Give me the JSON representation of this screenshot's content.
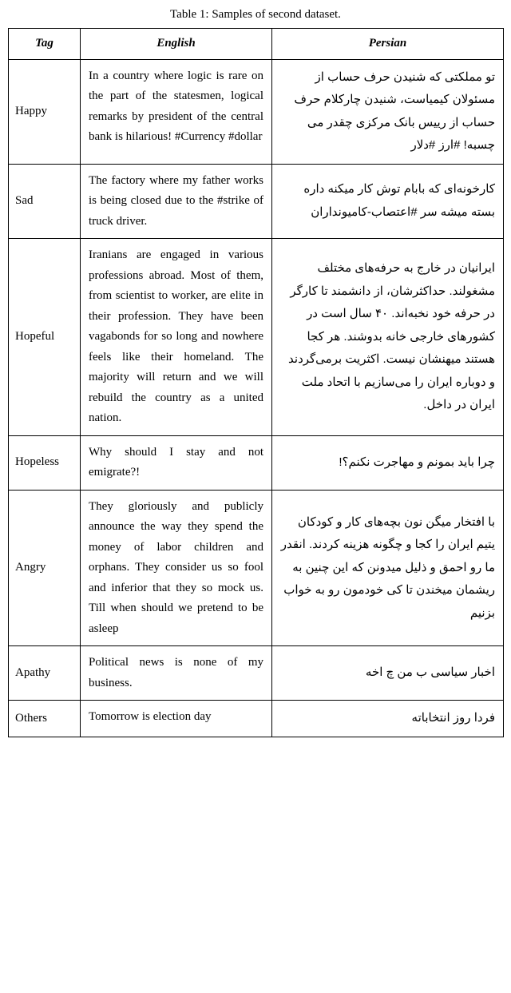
{
  "caption": "Table 1: Samples of second dataset.",
  "headers": {
    "tag": "Tag",
    "english": "English",
    "persian": "Persian"
  },
  "rows": [
    {
      "tag": "Happy",
      "english": "In a country where logic is rare on the part of the statesmen, logical remarks by president of the central bank is hilarious! #Currency #dollar",
      "persian": "تو مملکتی که شنیدن حرف حساب از مسئولان کیمیاست، شنیدن چارکلام حرف حساب از رییس بانک مرکزی چقدر می چسبه! #ارز #دلار"
    },
    {
      "tag": "Sad",
      "english": "The factory where my father works is being closed due to the #strike of truck driver.",
      "persian": "کارخونه‌ای که بابام توش کار میکنه داره بسته میشه سر #اعتصاب-کامیونداران"
    },
    {
      "tag": "Hopeful",
      "english": "Iranians are engaged in various professions abroad. Most of them, from scientist to worker, are elite in their profession. They have been vagabonds for so long and nowhere feels like their homeland. The majority will return and we will rebuild the country as a united nation.",
      "persian": "ایرانیان در خارج به حرفه‌های مختلف مشغولند. حداکثرشان، از دانشمند تا کارگر در حرفه خود نخبه‌اند. ۴۰ سال است در کشورهای خارجی خانه بدوشند. هر کجا هستند میهنشان نیست. اکثریت برمی‌گردند و دوباره ایران را می‌سازیم با اتحاد ملت ایران در داخل."
    },
    {
      "tag": "Hopeless",
      "english": "Why should I stay and not emigrate?!",
      "persian": "چرا باید بمونم و مهاجرت نکنم؟!"
    },
    {
      "tag": "Angry",
      "english": "They gloriously and publicly announce the way they spend the money of labor children and orphans. They consider us so fool and inferior that they so mock us. Till when should we pretend to be asleep",
      "persian": "با افتخار میگن نون بچه‌های کار و کودکان یتیم ایران را کجا و چگونه هزینه کردند. انقدر ما رو احمق و ذلیل میدونن که این چنین به ریشمان میخندن تا کی خودمون رو به خواب بزنیم"
    },
    {
      "tag": "Apathy",
      "english": "Political news is none of my business.",
      "persian": "اخبار سیاسی ب من چ اخه"
    },
    {
      "tag": "Others",
      "english": "Tomorrow is election day",
      "persian": "فردا روز انتخاباته"
    }
  ]
}
